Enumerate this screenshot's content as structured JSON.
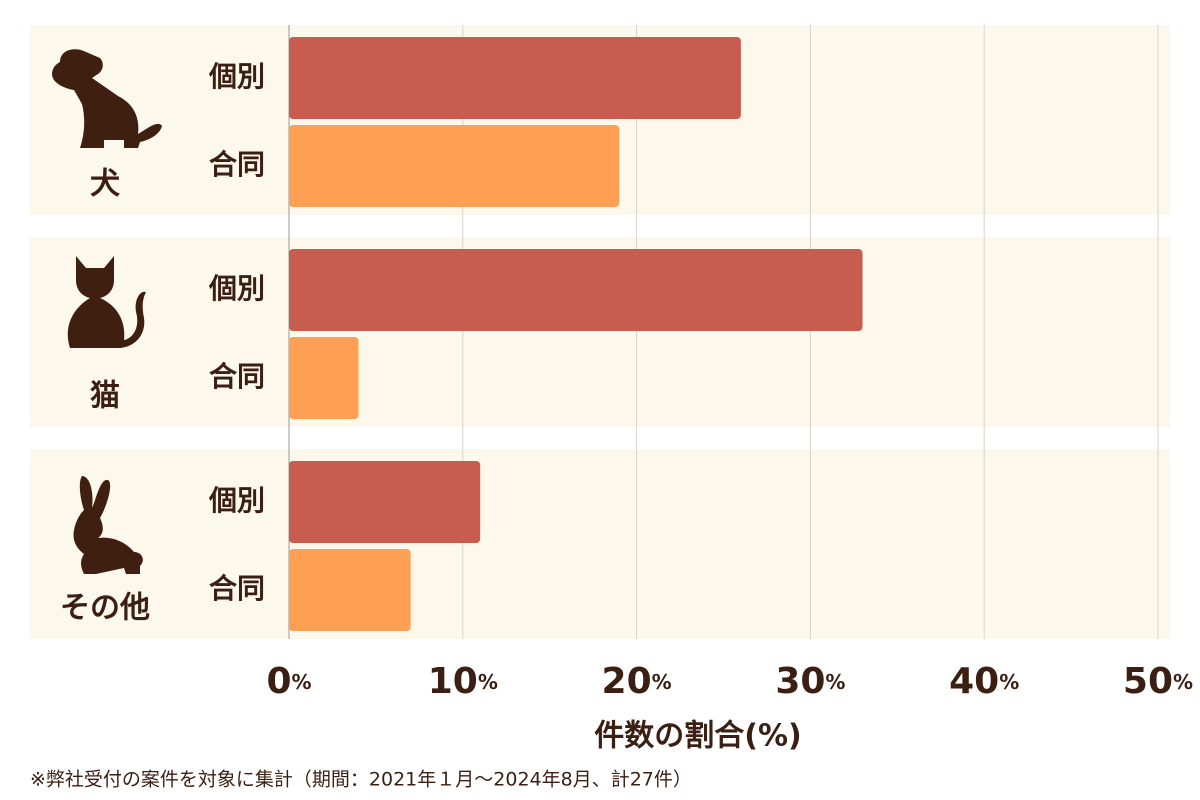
{
  "chart_data": {
    "type": "bar",
    "orientation": "horizontal",
    "categories": [
      "犬",
      "猫",
      "その他"
    ],
    "series": [
      {
        "name": "個別",
        "color": "#c85c4e",
        "values": [
          26,
          33,
          11
        ]
      },
      {
        "name": "合同",
        "color": "#fe9f53",
        "values": [
          19,
          4,
          7
        ]
      }
    ],
    "xlim": [
      0,
      50
    ],
    "xticks": [
      {
        "value": 0,
        "label": "0%"
      },
      {
        "value": 10,
        "label": "10%"
      },
      {
        "value": 20,
        "label": "20%"
      },
      {
        "value": 30,
        "label": "30%"
      },
      {
        "value": 40,
        "label": "40%"
      },
      {
        "value": 50,
        "label": "50%"
      }
    ],
    "xlabel": "件数の割合(%)",
    "grid": true,
    "footnote": "※弊社受付の案件を対象に集計（期間：2021年１月～2024年8月、計27件）"
  }
}
